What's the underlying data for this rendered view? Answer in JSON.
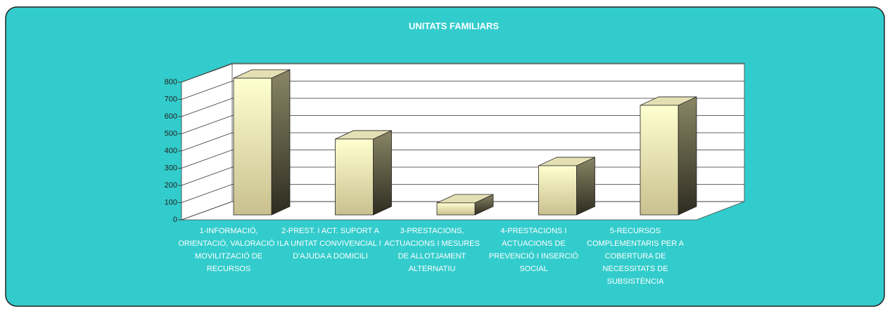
{
  "chart_data": {
    "type": "bar3d",
    "title": "UNITATS FAMILIARS",
    "categories": [
      "1-INFORMACIÓ, ORIENTACIÓ, VALORACIÓ I MOVILITZACIÓ DE RECURSOS",
      "2-PREST. I ACT. SUPORT A LA UNITAT CONVIVENCIAL I D'AJUDA A DOMICILI",
      "3-PRESTACIONS, ACTUACIONS I MESURES DE ALLOTJAMENT ALTERNATIU",
      "4-PRESTACIONS I ACTUACIONS DE PREVENCIÓ I INSERCIÓ SOCIAL",
      "5-RECURSOS COMPLEMENTARIS PER A COBERTURA DE NECESSITATS DE SUBSISTÈNCIA"
    ],
    "values": [
      795,
      441,
      70,
      286,
      637
    ],
    "color": "#f4f0c0",
    "ylim": [
      0,
      800
    ],
    "yticks": [
      0,
      100,
      200,
      300,
      400,
      500,
      600,
      700,
      800
    ],
    "grid": true
  }
}
